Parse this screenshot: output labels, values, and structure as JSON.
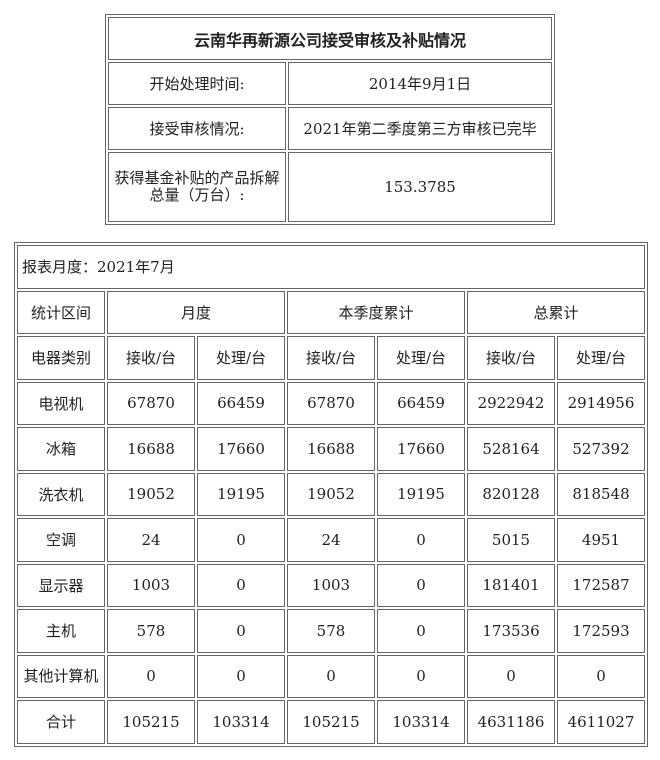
{
  "summary": {
    "title": "云南华再新源公司接受审核及补贴情况",
    "rows": [
      {
        "label": "开始处理时间:",
        "value": "2014年9月1日"
      },
      {
        "label": "接受审核情况:",
        "value": "2021年第二季度第三方审核已完毕"
      },
      {
        "label": "获得基金补贴的产品拆解总量（万台）:",
        "value": "153.3785"
      }
    ]
  },
  "report": {
    "month_label": "报表月度：2021年7月",
    "period_header": "统计区间",
    "periods": [
      "月度",
      "本季度累计",
      "总累计"
    ],
    "category_header": "电器类别",
    "sub_headers": [
      "接收/台",
      "处理/台",
      "接收/台",
      "处理/台",
      "接收/台",
      "处理/台"
    ],
    "rows": [
      {
        "name": "电视机",
        "values": [
          "67870",
          "66459",
          "67870",
          "66459",
          "2922942",
          "2914956"
        ]
      },
      {
        "name": "冰箱",
        "values": [
          "16688",
          "17660",
          "16688",
          "17660",
          "528164",
          "527392"
        ]
      },
      {
        "name": "洗衣机",
        "values": [
          "19052",
          "19195",
          "19052",
          "19195",
          "820128",
          "818548"
        ]
      },
      {
        "name": "空调",
        "values": [
          "24",
          "0",
          "24",
          "0",
          "5015",
          "4951"
        ]
      },
      {
        "name": "显示器",
        "values": [
          "1003",
          "0",
          "1003",
          "0",
          "181401",
          "172587"
        ]
      },
      {
        "name": "主机",
        "values": [
          "578",
          "0",
          "578",
          "0",
          "173536",
          "172593"
        ]
      },
      {
        "name": "其他计算机",
        "values": [
          "0",
          "0",
          "0",
          "0",
          "0",
          "0"
        ]
      },
      {
        "name": "合计",
        "values": [
          "105215",
          "103314",
          "105215",
          "103314",
          "4631186",
          "4611027"
        ]
      }
    ]
  }
}
